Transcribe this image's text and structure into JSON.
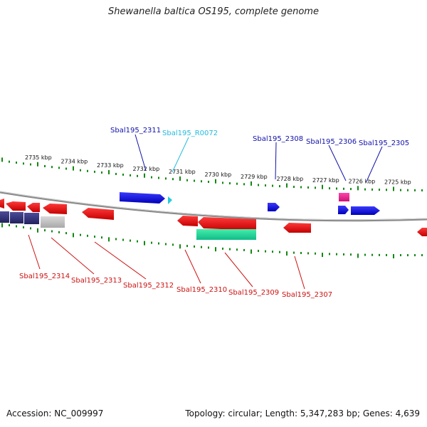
{
  "title": "Shewanella baltica OS195, complete genome",
  "footer": {
    "accession": "Accession: NC_009997",
    "summary": "Topology: circular; Length: 5,347,283 bp; Genes: 4,639"
  },
  "colors": {
    "forward_gene": "#1010e0",
    "reverse_gene": "#ee1111",
    "rna_gene": "#22ccdd",
    "pseudo_gene": "#bbbbbb",
    "operon_gene": "#2b2b7a",
    "green_feature": "#22dd99",
    "pink_feature": "#ee2288",
    "tick": "#118811",
    "backbone": "#888888",
    "forward_label": "#1111aa",
    "reverse_label": "#cc1111",
    "rna_label": "#22bbdd"
  },
  "scale": {
    "unit": "kbp",
    "ticks": [
      {
        "kbp": 2735,
        "label": "2735 kbp"
      },
      {
        "kbp": 2734,
        "label": "2734 kbp"
      },
      {
        "kbp": 2733,
        "label": "2733 kbp"
      },
      {
        "kbp": 2732,
        "label": "2732 kbp"
      },
      {
        "kbp": 2731,
        "label": "2731 kbp"
      },
      {
        "kbp": 2730,
        "label": "2730 kbp"
      },
      {
        "kbp": 2729,
        "label": "2729 kbp"
      },
      {
        "kbp": 2728,
        "label": "2728 kbp"
      },
      {
        "kbp": 2727,
        "label": "2727 kbp"
      },
      {
        "kbp": 2726,
        "label": "2726 kbp"
      },
      {
        "kbp": 2725,
        "label": "2725 kbp"
      }
    ]
  },
  "genes": [
    {
      "id": "Sbal195_2311",
      "strand": "forward",
      "type": "cds",
      "labeled": true
    },
    {
      "id": "Sbal195_R0072",
      "strand": "forward",
      "type": "rna",
      "labeled": true
    },
    {
      "id": "Sbal195_2308",
      "strand": "forward",
      "type": "cds",
      "labeled": true
    },
    {
      "id": "Sbal195_2306",
      "strand": "forward",
      "type": "cds",
      "labeled": true
    },
    {
      "id": "Sbal195_2305",
      "strand": "forward",
      "type": "cds",
      "labeled": true
    },
    {
      "id": "Sbal195_2314",
      "strand": "reverse",
      "type": "cds",
      "labeled": true
    },
    {
      "id": "Sbal195_2313",
      "strand": "reverse",
      "type": "cds",
      "labeled": true
    },
    {
      "id": "Sbal195_2312",
      "strand": "reverse",
      "type": "cds",
      "labeled": true
    },
    {
      "id": "Sbal195_2310",
      "strand": "reverse",
      "type": "cds",
      "labeled": true
    },
    {
      "id": "Sbal195_2309",
      "strand": "reverse",
      "type": "cds",
      "labeled": true
    },
    {
      "id": "Sbal195_2307",
      "strand": "reverse",
      "type": "cds",
      "labeled": true
    }
  ]
}
